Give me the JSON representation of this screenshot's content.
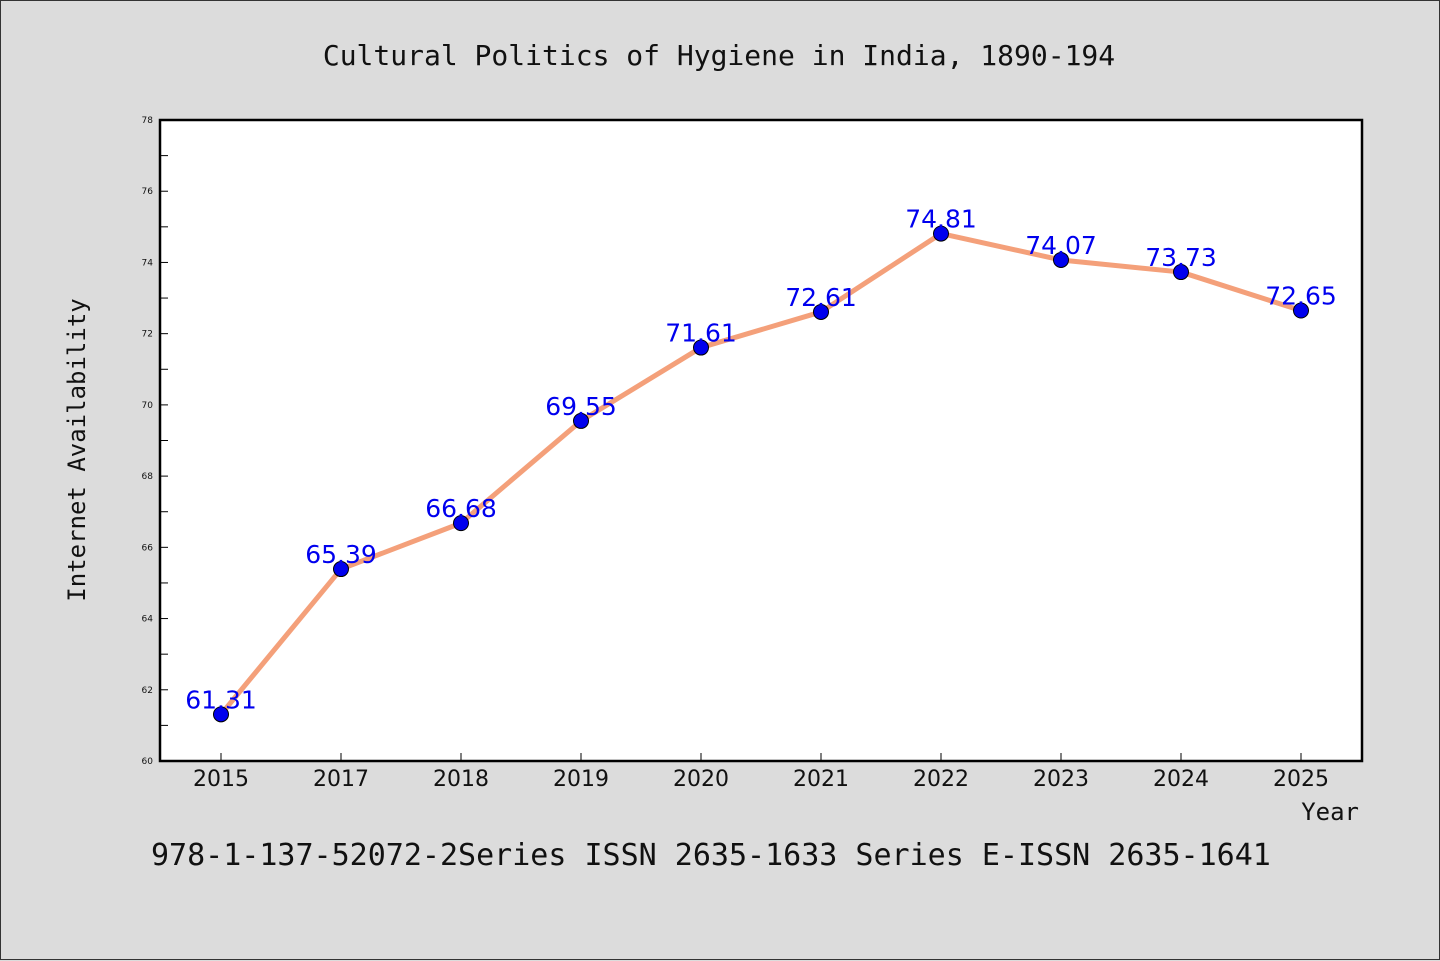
{
  "chart_data": {
    "type": "line",
    "title": "Cultural Politics of Hygiene in India, 1890-194",
    "xlabel": "Year",
    "ylabel": "Internet Availability",
    "categories": [
      "2015",
      "2017",
      "2018",
      "2019",
      "2020",
      "2021",
      "2022",
      "2023",
      "2024",
      "2025"
    ],
    "series": [
      {
        "values": [
          61.31,
          65.39,
          66.68,
          69.55,
          71.61,
          72.61,
          74.81,
          74.07,
          73.73,
          72.65
        ],
        "labels": [
          "61.31",
          "65.39",
          "66.68",
          "69.55",
          "71.61",
          "72.61",
          "74.81",
          "74.07",
          "73.73",
          "72.65"
        ],
        "line_color": "#f4a07a",
        "marker_color": "#0000ee"
      }
    ],
    "ylim": [
      60,
      78
    ],
    "yticks": [
      "60",
      "62",
      "64",
      "66",
      "68",
      "70",
      "72",
      "74",
      "76",
      "78"
    ],
    "grid": false,
    "legend": "none",
    "label_color": "#0000ee"
  },
  "footer": "978-1-137-52072-2Series ISSN 2635-1633 Series E-ISSN 2635-1641"
}
